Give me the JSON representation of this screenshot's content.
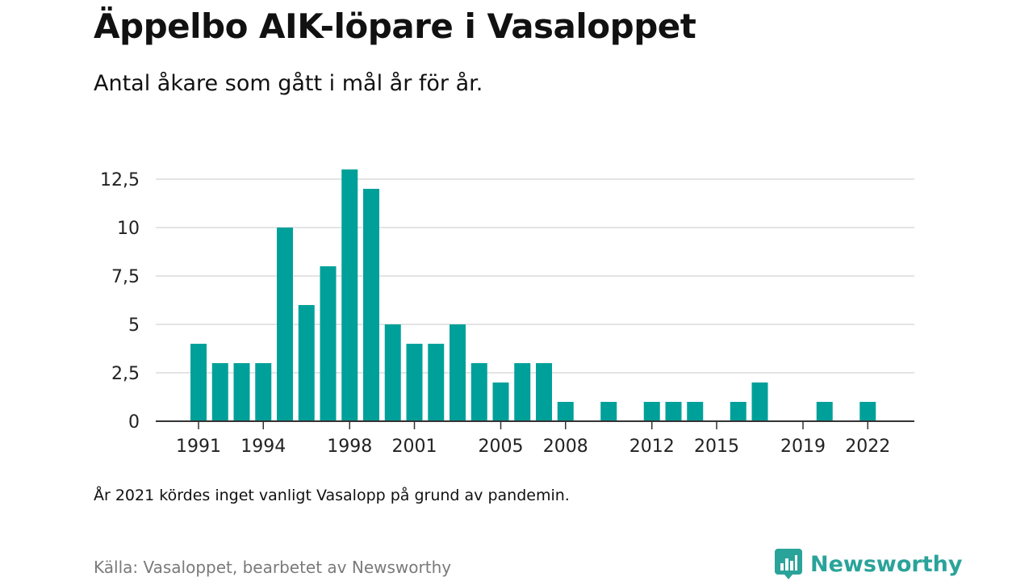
{
  "title": "Äppelbo AIK-löpare i Vasaloppet",
  "subtitle": "Antal åkare som gått i mål år för år.",
  "note": "År 2021 kördes inget vanligt Vasalopp på grund av pandemin.",
  "source": "Källa: Vasaloppet, bearbetet av Newsworthy",
  "brand": {
    "name": "Newsworthy",
    "logo_icon": "newsworthy-logo-icon",
    "color": "#2aa39a"
  },
  "chart_data": {
    "type": "bar",
    "title": "Äppelbo AIK-löpare i Vasaloppet",
    "subtitle": "Antal åkare som gått i mål år för år.",
    "xlabel": "",
    "ylabel": "",
    "bar_color": "#00a09a",
    "grid": true,
    "ylim": [
      0,
      13
    ],
    "xlim": [
      1990,
      2023
    ],
    "y_ticks": [
      {
        "value": 0,
        "label": "0"
      },
      {
        "value": 2.5,
        "label": "2,5"
      },
      {
        "value": 5,
        "label": "5"
      },
      {
        "value": 7.5,
        "label": "7,5"
      },
      {
        "value": 10,
        "label": "10"
      },
      {
        "value": 12.5,
        "label": "12,5"
      }
    ],
    "x_ticks": [
      {
        "value": 1991,
        "label": "1991"
      },
      {
        "value": 1994,
        "label": "1994"
      },
      {
        "value": 1998,
        "label": "1998"
      },
      {
        "value": 2001,
        "label": "2001"
      },
      {
        "value": 2005,
        "label": "2005"
      },
      {
        "value": 2008,
        "label": "2008"
      },
      {
        "value": 2012,
        "label": "2012"
      },
      {
        "value": 2015,
        "label": "2015"
      },
      {
        "value": 2019,
        "label": "2019"
      },
      {
        "value": 2022,
        "label": "2022"
      }
    ],
    "points": [
      {
        "year": 1991,
        "value": 4
      },
      {
        "year": 1992,
        "value": 3
      },
      {
        "year": 1993,
        "value": 3
      },
      {
        "year": 1994,
        "value": 3
      },
      {
        "year": 1995,
        "value": 10
      },
      {
        "year": 1996,
        "value": 6
      },
      {
        "year": 1997,
        "value": 8
      },
      {
        "year": 1998,
        "value": 13
      },
      {
        "year": 1999,
        "value": 12
      },
      {
        "year": 2000,
        "value": 5
      },
      {
        "year": 2001,
        "value": 4
      },
      {
        "year": 2002,
        "value": 4
      },
      {
        "year": 2003,
        "value": 5
      },
      {
        "year": 2004,
        "value": 3
      },
      {
        "year": 2005,
        "value": 2
      },
      {
        "year": 2006,
        "value": 3
      },
      {
        "year": 2007,
        "value": 3
      },
      {
        "year": 2008,
        "value": 1
      },
      {
        "year": 2010,
        "value": 1
      },
      {
        "year": 2012,
        "value": 1
      },
      {
        "year": 2013,
        "value": 1
      },
      {
        "year": 2014,
        "value": 1
      },
      {
        "year": 2016,
        "value": 1
      },
      {
        "year": 2017,
        "value": 2
      },
      {
        "year": 2020,
        "value": 1
      },
      {
        "year": 2022,
        "value": 1
      }
    ]
  }
}
